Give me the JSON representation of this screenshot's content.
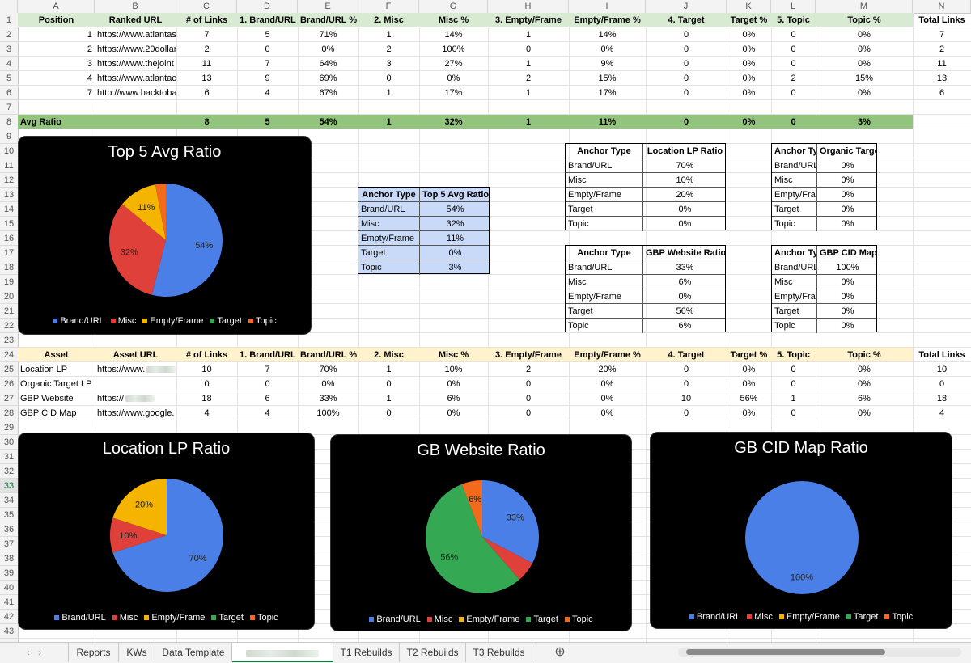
{
  "columns": [
    "A",
    "B",
    "C",
    "D",
    "E",
    "F",
    "G",
    "H",
    "I",
    "J",
    "K",
    "L",
    "M",
    "N"
  ],
  "rows": [
    "1",
    "2",
    "3",
    "4",
    "5",
    "6",
    "7",
    "8",
    "9",
    "10",
    "11",
    "12",
    "13",
    "14",
    "15",
    "16",
    "17",
    "18",
    "19",
    "20",
    "21",
    "22",
    "23",
    "24",
    "25",
    "26",
    "27",
    "28",
    "29",
    "30",
    "31",
    "32",
    "33",
    "34",
    "35",
    "36",
    "37",
    "38",
    "39",
    "40",
    "41",
    "42",
    "43"
  ],
  "selected_row": "33",
  "header1": [
    "Position",
    "Ranked URL",
    "# of Links",
    "1. Brand/URL",
    "Brand/URL %",
    "2. Misc",
    "Misc %",
    "3. Empty/Frame",
    "Empty/Frame %",
    "4. Target",
    "Target %",
    "5. Topic",
    "Topic %",
    "Total Links"
  ],
  "data1": [
    [
      "1",
      "https://www.atlantas",
      "7",
      "5",
      "71%",
      "1",
      "14%",
      "1",
      "14%",
      "0",
      "0%",
      "0",
      "0%",
      "7"
    ],
    [
      "2",
      "https://www.20dollar",
      "2",
      "0",
      "0%",
      "2",
      "100%",
      "0",
      "0%",
      "0",
      "0%",
      "0",
      "0%",
      "2"
    ],
    [
      "3",
      "https://www.thejoint",
      "11",
      "7",
      "64%",
      "3",
      "27%",
      "1",
      "9%",
      "0",
      "0%",
      "0",
      "0%",
      "11"
    ],
    [
      "4",
      "https://www.atlantac",
      "13",
      "9",
      "69%",
      "0",
      "0%",
      "2",
      "15%",
      "0",
      "0%",
      "2",
      "15%",
      "13"
    ],
    [
      "7",
      "http://www.backtoba",
      "6",
      "4",
      "67%",
      "1",
      "17%",
      "1",
      "17%",
      "0",
      "0%",
      "0",
      "0%",
      "6"
    ]
  ],
  "avg_row": [
    "Avg Ratio",
    "",
    "8",
    "5",
    "54%",
    "1",
    "32%",
    "1",
    "11%",
    "0",
    "0%",
    "0",
    "3%"
  ],
  "header2": [
    "Asset",
    "Asset URL",
    "# of Links",
    "1. Brand/URL",
    "Brand/URL %",
    "2. Misc",
    "Misc %",
    "3. Empty/Frame",
    "Empty/Frame %",
    "4. Target",
    "Target %",
    "5. Topic",
    "Topic %",
    "Total Links"
  ],
  "data2": [
    [
      "Location LP",
      "https://www.",
      "10",
      "7",
      "70%",
      "1",
      "10%",
      "2",
      "20%",
      "0",
      "0%",
      "0",
      "0%",
      "10"
    ],
    [
      "Organic Target LP",
      "",
      "0",
      "0",
      "0%",
      "0",
      "0%",
      "0",
      "0%",
      "0",
      "0%",
      "0",
      "0%",
      "0"
    ],
    [
      "GBP Website",
      "https://",
      "18",
      "6",
      "33%",
      "1",
      "6%",
      "0",
      "0%",
      "10",
      "56%",
      "1",
      "6%",
      "18"
    ],
    [
      "GBP CID Map",
      "https://www.google.",
      "4",
      "4",
      "100%",
      "0",
      "0%",
      "0",
      "0%",
      "0",
      "0%",
      "0",
      "0%",
      "4"
    ]
  ],
  "avg_table": {
    "headers": [
      "Anchor Type",
      "Top 5 Avg Ratio"
    ],
    "rows": [
      [
        "Brand/URL",
        "54%"
      ],
      [
        "Misc",
        "32%"
      ],
      [
        "Empty/Frame",
        "11%"
      ],
      [
        "Target",
        "0%"
      ],
      [
        "Topic",
        "3%"
      ]
    ]
  },
  "loc_table": {
    "headers": [
      "Anchor Type",
      "Location LP Ratio"
    ],
    "rows": [
      [
        "Brand/URL",
        "70%"
      ],
      [
        "Misc",
        "10%"
      ],
      [
        "Empty/Frame",
        "20%"
      ],
      [
        "Target",
        "0%"
      ],
      [
        "Topic",
        "0%"
      ]
    ]
  },
  "org_table": {
    "headers": [
      "Anchor Ty",
      "Organic Target LP Ratio"
    ],
    "rows": [
      [
        "Brand/URL",
        "0%"
      ],
      [
        "Misc",
        "0%"
      ],
      [
        "Empty/Fra",
        "0%"
      ],
      [
        "Target",
        "0%"
      ],
      [
        "Topic",
        "0%"
      ]
    ]
  },
  "gbp_table": {
    "headers": [
      "Anchor Type",
      "GBP Website Ratio"
    ],
    "rows": [
      [
        "Brand/URL",
        "33%"
      ],
      [
        "Misc",
        "6%"
      ],
      [
        "Empty/Frame",
        "0%"
      ],
      [
        "Target",
        "56%"
      ],
      [
        "Topic",
        "6%"
      ]
    ]
  },
  "cid_table": {
    "headers": [
      "Anchor Ty",
      "GBP CID Map Ratio"
    ],
    "rows": [
      [
        "Brand/URL",
        "100%"
      ],
      [
        "Misc",
        "0%"
      ],
      [
        "Empty/Fra",
        "0%"
      ],
      [
        "Target",
        "0%"
      ],
      [
        "Topic",
        "0%"
      ]
    ]
  },
  "legend": [
    "Brand/URL",
    "Misc",
    "Empty/Frame",
    "Target",
    "Topic"
  ],
  "colors": {
    "Brand/URL": "#4a7fe8",
    "Misc": "#e0403a",
    "Empty/Frame": "#f5b400",
    "Target": "#34a853",
    "Topic": "#f26a1b",
    "header_green": "#d9ead3",
    "avg_green": "#93c47d",
    "header_cream": "#fff2cc",
    "table_blue": "#c9daf8"
  },
  "chart_data": [
    {
      "type": "pie",
      "title": "Top 5 Avg Ratio",
      "categories": [
        "Brand/URL",
        "Misc",
        "Empty/Frame",
        "Target",
        "Topic"
      ],
      "values": [
        54,
        32,
        11,
        0,
        3
      ],
      "labels": [
        "54%",
        "32%",
        "11%",
        "",
        ""
      ]
    },
    {
      "type": "pie",
      "title": "Location LP Ratio",
      "categories": [
        "Brand/URL",
        "Misc",
        "Empty/Frame",
        "Target",
        "Topic"
      ],
      "values": [
        70,
        10,
        20,
        0,
        0
      ],
      "labels": [
        "70%",
        "10%",
        "20%",
        "",
        ""
      ]
    },
    {
      "type": "pie",
      "title": "GB Website Ratio",
      "categories": [
        "Brand/URL",
        "Misc",
        "Empty/Frame",
        "Target",
        "Topic"
      ],
      "values": [
        33,
        6,
        0,
        56,
        6
      ],
      "labels": [
        "33%",
        "",
        "",
        "56%",
        "6%"
      ]
    },
    {
      "type": "pie",
      "title": "GB CID Map Ratio",
      "categories": [
        "Brand/URL",
        "Misc",
        "Empty/Frame",
        "Target",
        "Topic"
      ],
      "values": [
        100,
        0,
        0,
        0,
        0
      ],
      "labels": [
        "100%",
        "",
        "",
        "",
        ""
      ]
    }
  ],
  "tabs": [
    "Reports",
    "KWs",
    "Data Template",
    "",
    "T1 Rebuilds",
    "T2 Rebuilds",
    "T3 Rebuilds"
  ],
  "add_tab": "⊕"
}
